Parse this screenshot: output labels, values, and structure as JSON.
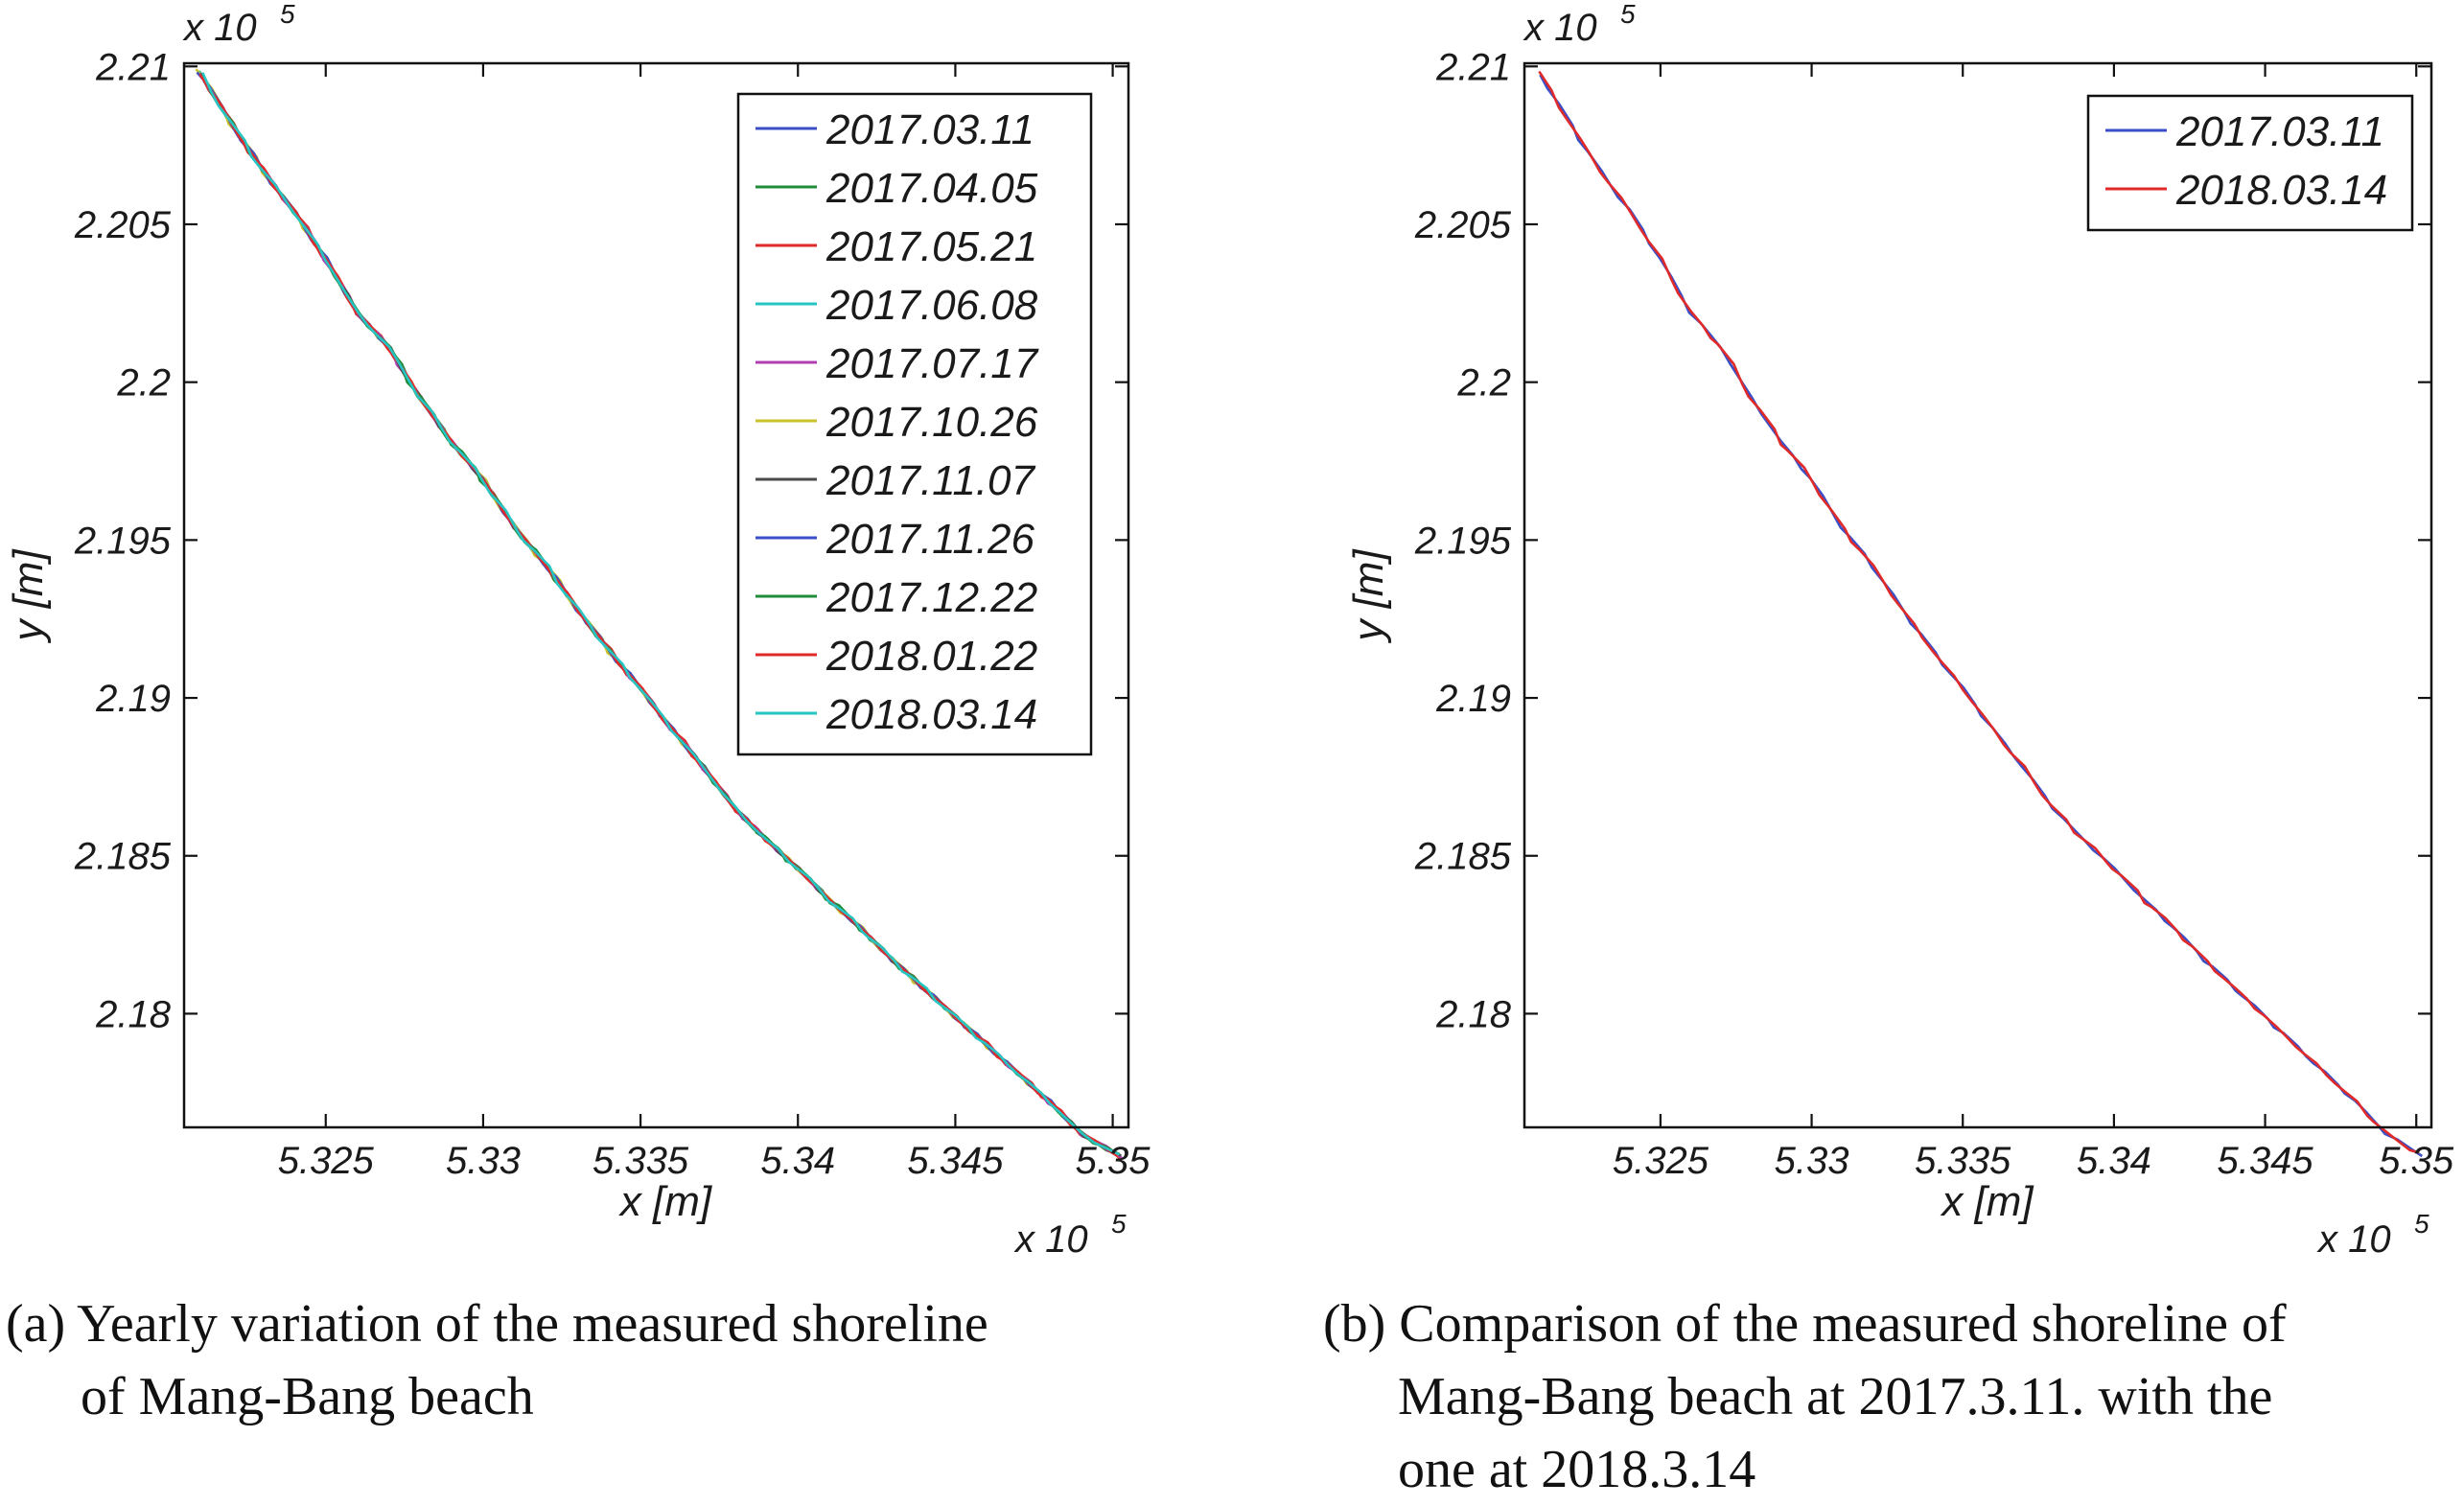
{
  "chart_data": [
    {
      "type": "line",
      "panel": "a",
      "xlabel": "x [m]",
      "ylabel": "y [m]",
      "x_multiplier": "x 10",
      "x_multiplier_exp": "5",
      "y_multiplier": "x 10",
      "y_multiplier_exp": "5",
      "xlim": [
        5.3205,
        5.3505
      ],
      "ylim": [
        2.1764,
        2.2101
      ],
      "xticks": [
        5.325,
        5.33,
        5.335,
        5.34,
        5.345,
        5.35
      ],
      "xtick_labels": [
        "5.325",
        "5.33",
        "5.335",
        "5.34",
        "5.345",
        "5.35"
      ],
      "yticks": [
        2.18,
        2.185,
        2.19,
        2.195,
        2.2,
        2.205,
        2.21
      ],
      "ytick_labels": [
        "2.18",
        "2.185",
        "2.19",
        "2.195",
        "2.2",
        "2.205",
        "2.21"
      ],
      "legend_position": "top-right",
      "shoreline": {
        "x": [
          5.321,
          5.322,
          5.323,
          5.324,
          5.325,
          5.326,
          5.327,
          5.328,
          5.329,
          5.33,
          5.331,
          5.332,
          5.333,
          5.334,
          5.335,
          5.336,
          5.337,
          5.338,
          5.339,
          5.34,
          5.341,
          5.342,
          5.343,
          5.344,
          5.345,
          5.346,
          5.347,
          5.348,
          5.349,
          5.3502
        ],
        "y": [
          2.2098,
          2.2082,
          2.2067,
          2.2054,
          2.2039,
          2.2022,
          2.2011,
          2.1995,
          2.1981,
          2.1969,
          2.1954,
          2.1942,
          2.1928,
          2.1915,
          2.1903,
          2.189,
          2.1878,
          2.1865,
          2.1855,
          2.1846,
          2.1836,
          2.1827,
          2.1817,
          2.1808,
          2.1799,
          2.179,
          2.1781,
          2.1772,
          2.1762,
          2.1755
        ]
      },
      "series": [
        {
          "name": "2017.03.11",
          "color": "#3a4fc7"
        },
        {
          "name": "2017.04.05",
          "color": "#1f8c3a"
        },
        {
          "name": "2017.05.21",
          "color": "#e02a2a"
        },
        {
          "name": "2017.06.08",
          "color": "#27c4c4"
        },
        {
          "name": "2017.07.17",
          "color": "#b03fb0"
        },
        {
          "name": "2017.10.26",
          "color": "#c9c22a"
        },
        {
          "name": "2017.11.07",
          "color": "#4a4a4a"
        },
        {
          "name": "2017.11.26",
          "color": "#3a4fc7"
        },
        {
          "name": "2017.12.22",
          "color": "#1f8c3a"
        },
        {
          "name": "2018.01.22",
          "color": "#e02a2a"
        },
        {
          "name": "2018.03.14",
          "color": "#27c4c4"
        }
      ]
    },
    {
      "type": "line",
      "panel": "b",
      "xlabel": "x [m]",
      "ylabel": "y [m]",
      "x_multiplier": "x 10",
      "x_multiplier_exp": "5",
      "y_multiplier": "x 10",
      "y_multiplier_exp": "5",
      "xlim": [
        5.3205,
        5.3505
      ],
      "ylim": [
        2.1764,
        2.2101
      ],
      "xticks": [
        5.325,
        5.33,
        5.335,
        5.34,
        5.345,
        5.35
      ],
      "xtick_labels": [
        "5.325",
        "5.33",
        "5.335",
        "5.34",
        "5.345",
        "5.35"
      ],
      "yticks": [
        2.18,
        2.185,
        2.19,
        2.195,
        2.2,
        2.205,
        2.21
      ],
      "ytick_labels": [
        "2.18",
        "2.185",
        "2.19",
        "2.195",
        "2.2",
        "2.205",
        "2.21"
      ],
      "legend_position": "top-right",
      "shoreline": {
        "x": [
          5.321,
          5.322,
          5.323,
          5.324,
          5.325,
          5.326,
          5.327,
          5.328,
          5.329,
          5.33,
          5.331,
          5.332,
          5.333,
          5.334,
          5.335,
          5.336,
          5.337,
          5.338,
          5.339,
          5.34,
          5.341,
          5.342,
          5.343,
          5.344,
          5.345,
          5.346,
          5.347,
          5.348,
          5.349,
          5.3502
        ],
        "y": [
          2.2098,
          2.2082,
          2.2067,
          2.2054,
          2.2039,
          2.2022,
          2.2011,
          2.1995,
          2.1981,
          2.1969,
          2.1954,
          2.1942,
          2.1928,
          2.1915,
          2.1903,
          2.189,
          2.1878,
          2.1865,
          2.1855,
          2.1846,
          2.1836,
          2.1827,
          2.1817,
          2.1808,
          2.1799,
          2.179,
          2.1781,
          2.1772,
          2.1762,
          2.1755
        ]
      },
      "series": [
        {
          "name": "2017.03.11",
          "color": "#3a4fc7"
        },
        {
          "name": "2018.03.14",
          "color": "#e02a2a"
        }
      ]
    }
  ],
  "captions": {
    "a_line1": "(a) Yearly variation of the measured shoreline",
    "a_line2": "of Mang-Bang beach",
    "b_line1": "(b) Comparison of the measured shoreline of",
    "b_line2": "Mang-Bang beach at 2017.3.11. with the",
    "b_line3": "one at 2018.3.14"
  }
}
